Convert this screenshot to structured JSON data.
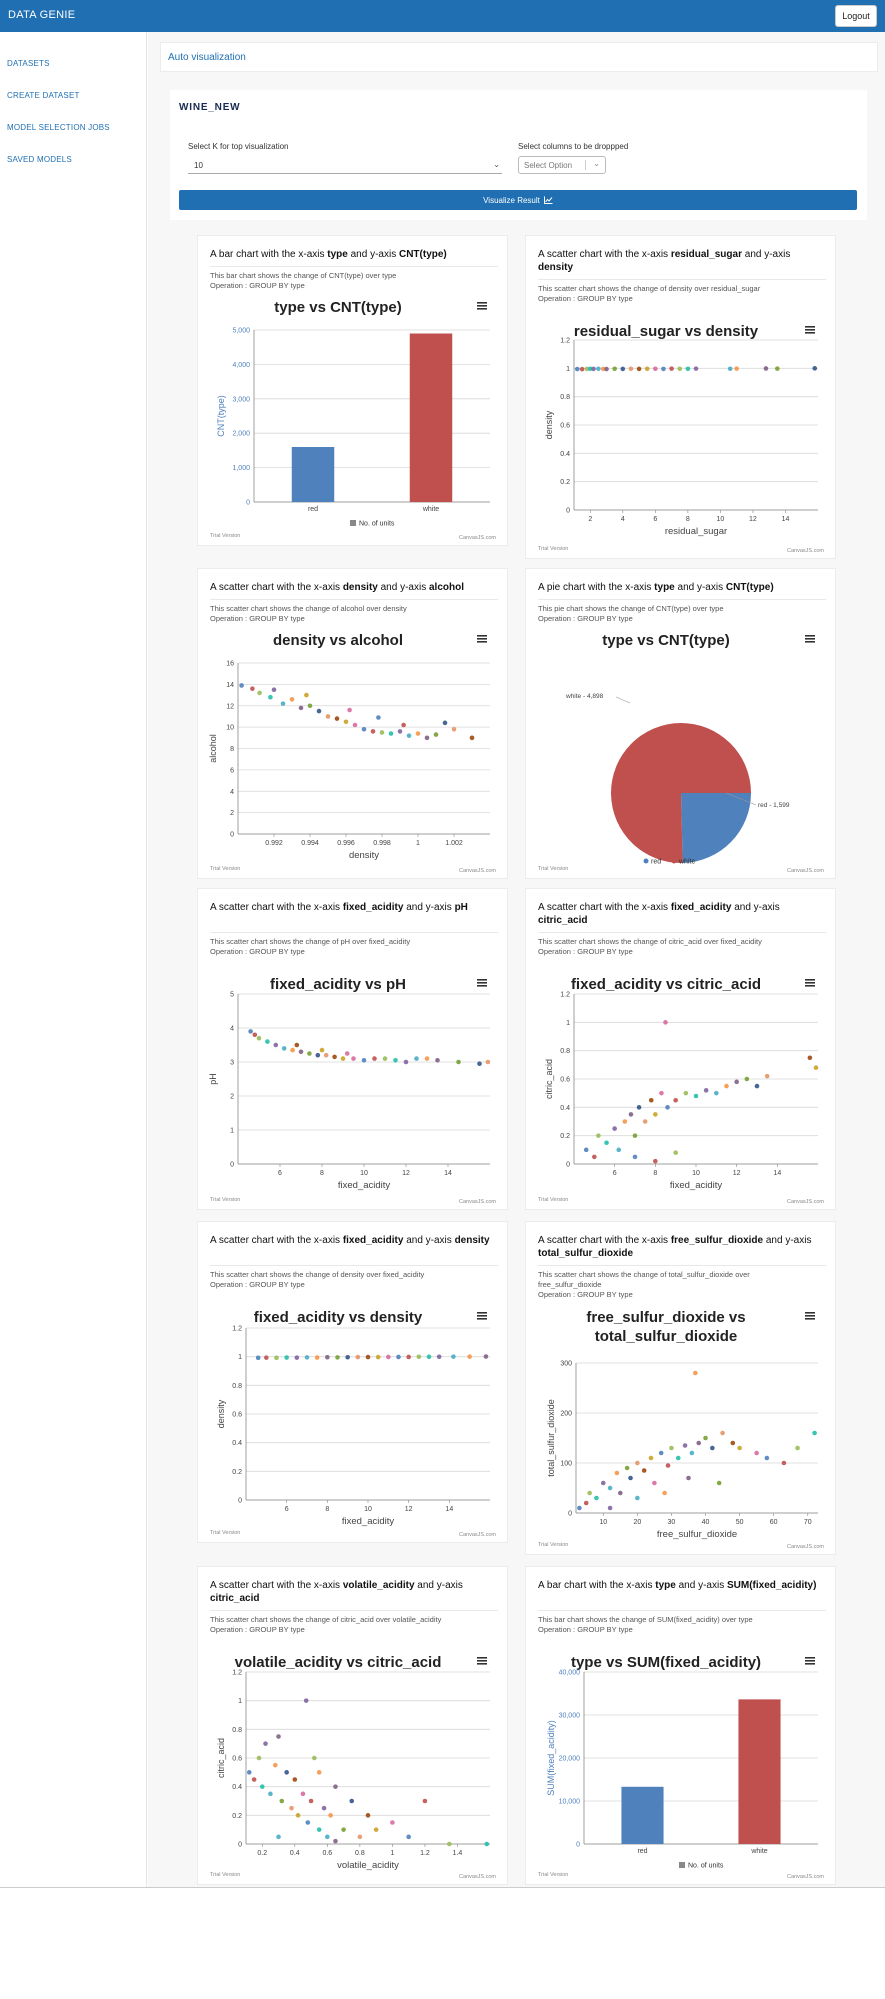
{
  "header": {
    "brand": "DATA GENIE",
    "logout_label": "Logout"
  },
  "sidebar": {
    "items": [
      {
        "label": "DATASETS"
      },
      {
        "label": "CREATE DATASET"
      },
      {
        "label": "MODEL SELECTION JOBS"
      },
      {
        "label": "SAVED MODELS"
      }
    ]
  },
  "page": {
    "title": "Auto visualization",
    "dataset": "WINE_NEW"
  },
  "controls": {
    "k_label": "Select K for top visualization",
    "k_value": "10",
    "drop_label": "Select columns to be droppped",
    "drop_placeholder": "Select Option",
    "visualize_label": "Visualize Result"
  },
  "chart_footer": {
    "left": "Trial Version",
    "right": "CanvasJS.com"
  },
  "colors": {
    "accent": "#1f6fb2",
    "red_series": "#c0504e",
    "blue_series": "#4f81bc"
  },
  "icons": {
    "menu": "hamburger-menu-icon",
    "chart_small": "chart-icon"
  },
  "chart_data": [
    {
      "type": "bar",
      "heading": {
        "pre": "A bar chart with the x-axis ",
        "x": "type",
        "mid": " and y-axis ",
        "y": "CNT(type)"
      },
      "desc": [
        "This bar chart shows the change of CNT(type) over type",
        "Operation : GROUP BY type"
      ],
      "title": "type vs CNT(type)",
      "categories": [
        "red",
        "white"
      ],
      "values": [
        1599,
        4898
      ],
      "ylabel": "CNT(type)",
      "ylim": [
        0,
        5000
      ],
      "yticks": [
        "0",
        "1,000",
        "2,000",
        "3,000",
        "4,000",
        "5,000"
      ],
      "legend": "No. of units"
    },
    {
      "type": "scatter",
      "heading": {
        "pre": "A scatter chart with the x-axis ",
        "x": "residual_sugar",
        "mid": " and y-axis ",
        "y": "density"
      },
      "desc": [
        "This scatter chart shows the change of density over residual_sugar",
        "Operation : GROUP BY type"
      ],
      "title": "residual_sugar vs density",
      "xlabel": "residual_sugar",
      "ylabel": "density",
      "xlim": [
        1,
        16
      ],
      "ylim": [
        0,
        1.2
      ],
      "xticks": [
        "2",
        "4",
        "6",
        "8",
        "10",
        "12",
        "14"
      ],
      "yticks": [
        "0",
        "0.2",
        "0.4",
        "0.6",
        "0.8",
        "1",
        "1.2"
      ],
      "points": [
        [
          1.2,
          0.995
        ],
        [
          1.5,
          0.994
        ],
        [
          1.8,
          0.996
        ],
        [
          2.0,
          0.997
        ],
        [
          2.2,
          0.996
        ],
        [
          2.5,
          0.997
        ],
        [
          2.8,
          0.996
        ],
        [
          3.0,
          0.995
        ],
        [
          3.5,
          0.997
        ],
        [
          4.0,
          0.996
        ],
        [
          4.5,
          0.997
        ],
        [
          5.0,
          0.996
        ],
        [
          5.5,
          0.997
        ],
        [
          6.0,
          0.997
        ],
        [
          6.5,
          0.996
        ],
        [
          7.0,
          0.998
        ],
        [
          7.5,
          0.997
        ],
        [
          8.0,
          0.997
        ],
        [
          8.5,
          0.998
        ],
        [
          10.6,
          0.997
        ],
        [
          11.0,
          0.998
        ],
        [
          12.8,
          0.999
        ],
        [
          13.5,
          0.998
        ],
        [
          15.8,
          1.0
        ]
      ]
    },
    {
      "type": "scatter",
      "heading": {
        "pre": "A scatter chart with the x-axis ",
        "x": "density",
        "mid": " and y-axis ",
        "y": "alcohol"
      },
      "desc": [
        "This scatter chart shows the change of alcohol over density",
        "Operation : GROUP BY type"
      ],
      "title": "density vs alcohol",
      "xlabel": "density",
      "ylabel": "alcohol",
      "xlim": [
        0.99,
        1.004
      ],
      "ylim": [
        0,
        16
      ],
      "xticks": [
        "0.992",
        "0.994",
        "0.996",
        "0.998",
        "1",
        "1.002"
      ],
      "yticks": [
        "0",
        "2",
        "4",
        "6",
        "8",
        "10",
        "12",
        "14",
        "16"
      ],
      "points": [
        [
          0.9902,
          13.9
        ],
        [
          0.9908,
          13.6
        ],
        [
          0.9912,
          13.2
        ],
        [
          0.9918,
          12.8
        ],
        [
          0.992,
          13.5
        ],
        [
          0.9925,
          12.2
        ],
        [
          0.993,
          12.6
        ],
        [
          0.9935,
          11.8
        ],
        [
          0.994,
          12.0
        ],
        [
          0.9945,
          11.5
        ],
        [
          0.995,
          11.0
        ],
        [
          0.9955,
          10.8
        ],
        [
          0.996,
          10.5
        ],
        [
          0.9965,
          10.2
        ],
        [
          0.997,
          9.8
        ],
        [
          0.9975,
          9.6
        ],
        [
          0.998,
          9.5
        ],
        [
          0.9985,
          9.4
        ],
        [
          0.999,
          9.6
        ],
        [
          0.9995,
          9.2
        ],
        [
          1.0,
          9.4
        ],
        [
          1.0005,
          9.0
        ],
        [
          1.001,
          9.3
        ],
        [
          1.0015,
          10.4
        ],
        [
          1.002,
          9.8
        ],
        [
          1.003,
          9.0
        ],
        [
          0.9938,
          13.0
        ],
        [
          0.9962,
          11.6
        ],
        [
          0.9978,
          10.9
        ],
        [
          0.9992,
          10.2
        ]
      ]
    },
    {
      "type": "pie",
      "heading": {
        "pre": "A pie chart with the x-axis ",
        "x": "type",
        "mid": " and y-axis ",
        "y": "CNT(type)"
      },
      "desc": [
        "This pie chart shows the change of CNT(type) over type",
        "Operation : GROUP BY type"
      ],
      "title": "type vs CNT(type)",
      "categories": [
        "red",
        "white"
      ],
      "values": [
        1599,
        4898
      ],
      "slice_labels": [
        "red - 1,599",
        "white - 4,898"
      ]
    },
    {
      "type": "scatter",
      "heading": {
        "pre": "A scatter chart with the x-axis ",
        "x": "fixed_acidity",
        "mid": " and y-axis ",
        "y": "pH"
      },
      "desc": [
        "This scatter chart shows the change of pH over fixed_acidity",
        "Operation : GROUP BY type"
      ],
      "title": "fixed_acidity vs pH",
      "xlabel": "fixed_acidity",
      "ylabel": "pH",
      "xlim": [
        4,
        16
      ],
      "ylim": [
        0,
        5
      ],
      "xticks": [
        "6",
        "8",
        "10",
        "12",
        "14"
      ],
      "yticks": [
        "0",
        "1",
        "2",
        "3",
        "4",
        "5"
      ],
      "points": [
        [
          4.6,
          3.9
        ],
        [
          4.8,
          3.8
        ],
        [
          5.0,
          3.7
        ],
        [
          5.4,
          3.6
        ],
        [
          5.8,
          3.5
        ],
        [
          6.2,
          3.4
        ],
        [
          6.6,
          3.35
        ],
        [
          7.0,
          3.3
        ],
        [
          7.4,
          3.25
        ],
        [
          7.8,
          3.2
        ],
        [
          8.2,
          3.2
        ],
        [
          8.6,
          3.15
        ],
        [
          9.0,
          3.1
        ],
        [
          9.5,
          3.1
        ],
        [
          10.0,
          3.05
        ],
        [
          10.5,
          3.1
        ],
        [
          11.0,
          3.1
        ],
        [
          11.5,
          3.05
        ],
        [
          12.0,
          3.0
        ],
        [
          12.5,
          3.1
        ],
        [
          13.0,
          3.1
        ],
        [
          13.5,
          3.05
        ],
        [
          14.5,
          3.0
        ],
        [
          15.5,
          2.95
        ],
        [
          15.9,
          3.0
        ],
        [
          6.8,
          3.5
        ],
        [
          8.0,
          3.35
        ],
        [
          9.2,
          3.25
        ]
      ]
    },
    {
      "type": "scatter",
      "heading": {
        "pre": "A scatter chart with the x-axis ",
        "x": "fixed_acidity",
        "mid": " and y-axis ",
        "y": "citric_acid"
      },
      "desc": [
        "This scatter chart shows the change of citric_acid over fixed_acidity",
        "Operation : GROUP BY type"
      ],
      "title": "fixed_acidity vs citric_acid",
      "xlabel": "fixed_acidity",
      "ylabel": "citric_acid",
      "xlim": [
        4,
        16
      ],
      "ylim": [
        0,
        1.2
      ],
      "xticks": [
        "6",
        "8",
        "10",
        "12",
        "14"
      ],
      "yticks": [
        "0",
        "0.2",
        "0.4",
        "0.6",
        "0.8",
        "1",
        "1.2"
      ],
      "points": [
        [
          4.6,
          0.1
        ],
        [
          5.0,
          0.05
        ],
        [
          5.2,
          0.2
        ],
        [
          5.6,
          0.15
        ],
        [
          6.0,
          0.25
        ],
        [
          6.2,
          0.1
        ],
        [
          6.5,
          0.3
        ],
        [
          6.8,
          0.35
        ],
        [
          7.0,
          0.2
        ],
        [
          7.2,
          0.4
        ],
        [
          7.5,
          0.3
        ],
        [
          7.8,
          0.45
        ],
        [
          8.0,
          0.35
        ],
        [
          8.3,
          0.5
        ],
        [
          8.6,
          0.4
        ],
        [
          9.0,
          0.45
        ],
        [
          9.5,
          0.5
        ],
        [
          10.0,
          0.48
        ],
        [
          10.5,
          0.52
        ],
        [
          11.0,
          0.5
        ],
        [
          11.5,
          0.55
        ],
        [
          12.0,
          0.58
        ],
        [
          12.5,
          0.6
        ],
        [
          13.0,
          0.55
        ],
        [
          13.5,
          0.62
        ],
        [
          15.6,
          0.75
        ],
        [
          15.9,
          0.68
        ],
        [
          8.5,
          1.0
        ],
        [
          7.0,
          0.05
        ],
        [
          8.0,
          0.02
        ],
        [
          9.0,
          0.08
        ]
      ]
    },
    {
      "type": "scatter",
      "heading": {
        "pre": "A scatter chart with the x-axis ",
        "x": "fixed_acidity",
        "mid": " and y-axis ",
        "y": "density"
      },
      "desc": [
        "This scatter chart shows the change of density over fixed_acidity",
        "Operation : GROUP BY type"
      ],
      "title": "fixed_acidity vs density",
      "xlabel": "fixed_acidity",
      "ylabel": "density",
      "xlim": [
        4,
        16
      ],
      "ylim": [
        0,
        1.2
      ],
      "xticks": [
        "6",
        "8",
        "10",
        "12",
        "14"
      ],
      "yticks": [
        "0",
        "0.2",
        "0.4",
        "0.6",
        "0.8",
        "1",
        "1.2"
      ],
      "points": [
        [
          4.6,
          0.992
        ],
        [
          5.0,
          0.993
        ],
        [
          5.5,
          0.992
        ],
        [
          6.0,
          0.994
        ],
        [
          6.5,
          0.993
        ],
        [
          7.0,
          0.995
        ],
        [
          7.5,
          0.994
        ],
        [
          8.0,
          0.996
        ],
        [
          8.5,
          0.995
        ],
        [
          9.0,
          0.996
        ],
        [
          9.5,
          0.997
        ],
        [
          10.0,
          0.997
        ],
        [
          10.5,
          0.997
        ],
        [
          11.0,
          0.998
        ],
        [
          11.5,
          0.998
        ],
        [
          12.0,
          0.998
        ],
        [
          12.5,
          0.999
        ],
        [
          13.0,
          0.999
        ],
        [
          13.5,
          0.999
        ],
        [
          14.2,
          1.0
        ],
        [
          15.0,
          1.0
        ],
        [
          15.8,
          1.001
        ]
      ]
    },
    {
      "type": "scatter",
      "heading": {
        "pre": "A scatter chart with the x-axis ",
        "x": "free_sulfur_dioxide",
        "mid": " and y-axis ",
        "y": "total_sulfur_dioxide"
      },
      "desc": [
        "This scatter chart shows the change of total_sulfur_dioxide over",
        "free_sulfur_dioxide",
        "Operation : GROUP BY type"
      ],
      "title": "free_sulfur_dioxide vs",
      "title2": "total_sulfur_dioxide",
      "xlabel": "free_sulfur_dioxide",
      "ylabel": "total_sulfur_dioxide",
      "xlim": [
        2,
        73
      ],
      "ylim": [
        0,
        300
      ],
      "xticks": [
        "10",
        "20",
        "30",
        "40",
        "50",
        "60",
        "70"
      ],
      "yticks": [
        "0",
        "100",
        "200",
        "300"
      ],
      "points": [
        [
          3,
          10
        ],
        [
          5,
          20
        ],
        [
          6,
          40
        ],
        [
          8,
          30
        ],
        [
          10,
          60
        ],
        [
          12,
          50
        ],
        [
          14,
          80
        ],
        [
          15,
          40
        ],
        [
          17,
          90
        ],
        [
          18,
          70
        ],
        [
          20,
          100
        ],
        [
          22,
          85
        ],
        [
          24,
          110
        ],
        [
          25,
          60
        ],
        [
          27,
          120
        ],
        [
          29,
          95
        ],
        [
          30,
          130
        ],
        [
          32,
          110
        ],
        [
          34,
          135
        ],
        [
          36,
          120
        ],
        [
          37,
          280
        ],
        [
          38,
          140
        ],
        [
          40,
          150
        ],
        [
          42,
          130
        ],
        [
          45,
          160
        ],
        [
          48,
          140
        ],
        [
          50,
          130
        ],
        [
          55,
          120
        ],
        [
          58,
          110
        ],
        [
          63,
          100
        ],
        [
          67,
          130
        ],
        [
          72,
          160
        ],
        [
          12,
          10
        ],
        [
          20,
          30
        ],
        [
          28,
          40
        ],
        [
          35,
          70
        ],
        [
          44,
          60
        ]
      ]
    },
    {
      "type": "scatter",
      "heading": {
        "pre": "A scatter chart with the x-axis ",
        "x": "volatile_acidity",
        "mid": " and y-axis ",
        "y": "citric_acid"
      },
      "desc": [
        "This scatter chart shows the change of citric_acid over volatile_acidity",
        "Operation : GROUP BY type"
      ],
      "title": "volatile_acidity vs citric_acid",
      "xlabel": "volatile_acidity",
      "ylabel": "citric_acid",
      "xlim": [
        0.1,
        1.6
      ],
      "ylim": [
        0,
        1.2
      ],
      "xticks": [
        "0.2",
        "0.4",
        "0.6",
        "0.8",
        "1",
        "1.2",
        "1.4"
      ],
      "yticks": [
        "0",
        "0.2",
        "0.4",
        "0.6",
        "0.8",
        "1",
        "1.2"
      ],
      "points": [
        [
          0.12,
          0.5
        ],
        [
          0.15,
          0.45
        ],
        [
          0.18,
          0.6
        ],
        [
          0.2,
          0.4
        ],
        [
          0.22,
          0.7
        ],
        [
          0.25,
          0.35
        ],
        [
          0.28,
          0.55
        ],
        [
          0.3,
          0.75
        ],
        [
          0.32,
          0.3
        ],
        [
          0.35,
          0.5
        ],
        [
          0.38,
          0.25
        ],
        [
          0.4,
          0.45
        ],
        [
          0.42,
          0.2
        ],
        [
          0.45,
          0.35
        ],
        [
          0.48,
          0.15
        ],
        [
          0.5,
          0.3
        ],
        [
          0.52,
          0.6
        ],
        [
          0.55,
          0.1
        ],
        [
          0.58,
          0.25
        ],
        [
          0.6,
          0.05
        ],
        [
          0.62,
          0.2
        ],
        [
          0.65,
          0.4
        ],
        [
          0.7,
          0.1
        ],
        [
          0.75,
          0.3
        ],
        [
          0.8,
          0.05
        ],
        [
          0.85,
          0.2
        ],
        [
          0.9,
          0.1
        ],
        [
          1.0,
          0.15
        ],
        [
          1.1,
          0.05
        ],
        [
          1.2,
          0.3
        ],
        [
          1.35,
          0.0
        ],
        [
          1.58,
          0.0
        ],
        [
          0.47,
          1.0
        ],
        [
          0.3,
          0.05
        ],
        [
          0.55,
          0.5
        ],
        [
          0.65,
          0.02
        ]
      ]
    },
    {
      "type": "bar",
      "heading": {
        "pre": "A bar chart with the x-axis ",
        "x": "type",
        "mid": " and y-axis ",
        "y": "SUM(fixed_acidity)"
      },
      "desc": [
        "This bar chart shows the change of SUM(fixed_acidity) over type",
        "Operation : GROUP BY type"
      ],
      "title": "type vs SUM(fixed_acidity)",
      "categories": [
        "red",
        "white"
      ],
      "values": [
        13303.1,
        33632.7
      ],
      "ylabel": "SUM(fixed_acidity)",
      "ylim": [
        0,
        40000
      ],
      "yticks": [
        "0",
        "10,000",
        "20,000",
        "30,000",
        "40,000"
      ],
      "legend": "No. of units"
    }
  ]
}
